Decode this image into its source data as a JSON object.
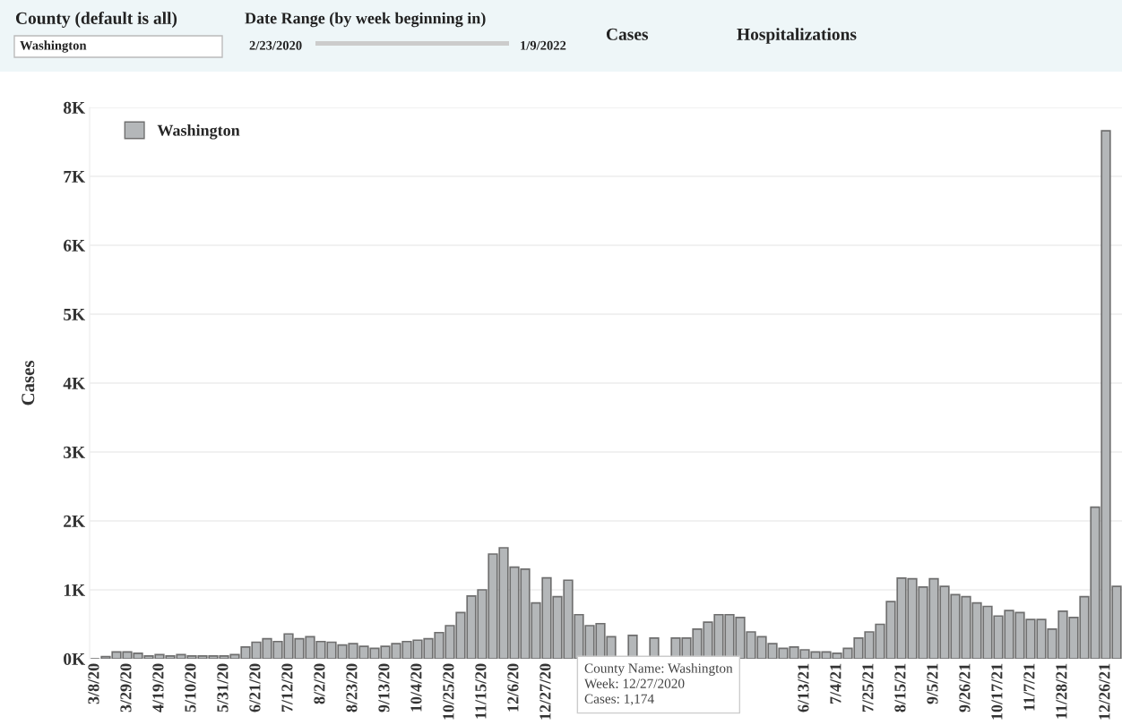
{
  "chart_data": {
    "type": "bar",
    "ylabel": "Cases",
    "categories": [
      "3/8/20",
      null,
      null,
      "3/29/20",
      null,
      null,
      "4/19/20",
      null,
      null,
      "5/10/20",
      null,
      null,
      "5/31/20",
      null,
      null,
      "6/21/20",
      null,
      null,
      "7/12/20",
      null,
      null,
      "8/2/20",
      null,
      null,
      "8/23/20",
      null,
      null,
      "9/13/20",
      null,
      null,
      "10/4/20",
      null,
      null,
      "10/25/20",
      null,
      null,
      "11/15/20",
      null,
      null,
      "12/6/20",
      null,
      null,
      "12/27/20",
      null,
      null,
      null,
      null,
      null,
      null,
      null,
      null,
      null,
      null,
      null,
      null,
      null,
      null,
      null,
      null,
      null,
      null,
      null,
      null,
      null,
      null,
      null,
      "6/13/21",
      null,
      null,
      "7/4/21",
      null,
      null,
      "7/25/21",
      null,
      null,
      "8/15/21",
      null,
      null,
      "9/5/21",
      null,
      null,
      "9/26/21",
      null,
      null,
      "10/17/21",
      null,
      null,
      "11/7/21",
      null,
      null,
      "11/28/21",
      null,
      null,
      null,
      "12/26/21",
      null
    ],
    "series": [
      {
        "name": "Washington",
        "color": "#b4b7b9",
        "values": [
          0,
          30,
          100,
          100,
          80,
          40,
          60,
          40,
          60,
          40,
          40,
          40,
          40,
          60,
          170,
          240,
          290,
          250,
          360,
          290,
          320,
          250,
          240,
          200,
          220,
          180,
          150,
          180,
          220,
          250,
          270,
          290,
          380,
          480,
          670,
          910,
          1000,
          1520,
          1610,
          1330,
          1300,
          810,
          1174,
          900,
          1140,
          640,
          480,
          510,
          320,
          null,
          340,
          null,
          300,
          null,
          300,
          300,
          430,
          530,
          640,
          640,
          600,
          390,
          320,
          220,
          150,
          170,
          130,
          100,
          100,
          80,
          150,
          300,
          390,
          500,
          830,
          1170,
          1160,
          1040,
          1160,
          1050,
          930,
          900,
          810,
          760,
          620,
          700,
          670,
          570,
          570,
          430,
          690,
          600,
          900,
          2200,
          7660,
          1050
        ]
      }
    ],
    "ylim": [
      0,
      8000
    ],
    "yticks": [
      {
        "value": 0,
        "label": "0K"
      },
      {
        "value": 1000,
        "label": "1K"
      },
      {
        "value": 2000,
        "label": "2K"
      },
      {
        "value": 3000,
        "label": "3K"
      },
      {
        "value": 4000,
        "label": "4K"
      },
      {
        "value": 5000,
        "label": "5K"
      },
      {
        "value": 6000,
        "label": "6K"
      },
      {
        "value": 7000,
        "label": "7K"
      },
      {
        "value": 8000,
        "label": "8K"
      }
    ],
    "grid": "y",
    "legend": "top left",
    "annotations": [
      "County (default is all)",
      "Washington",
      "Date Range (by week beginning in)",
      "2/23/2020",
      "1/9/2022",
      "Cases",
      "Hospitalizations",
      "County Name: Washington\nWeek: 12/27/2020\nCases: 1,174"
    ]
  }
}
